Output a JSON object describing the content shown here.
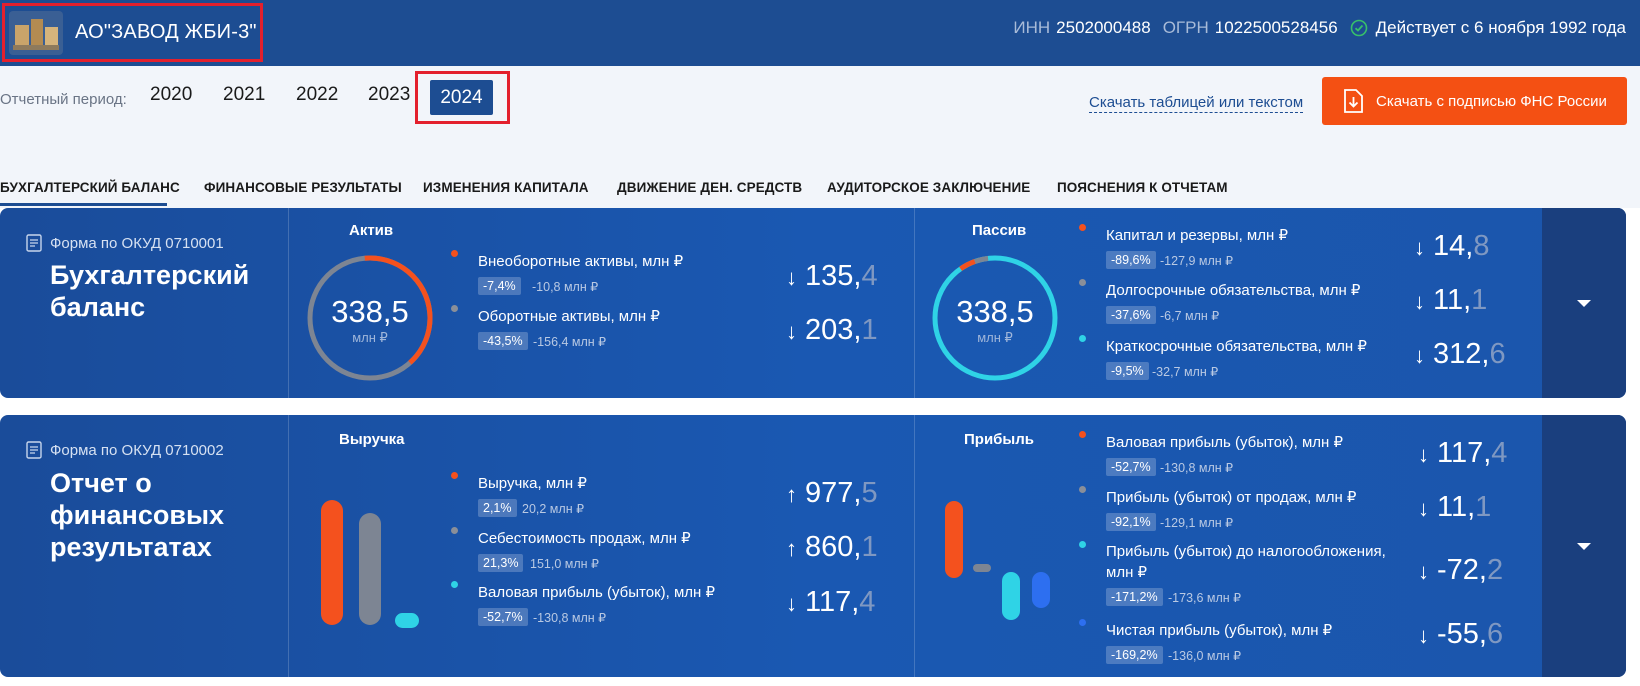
{
  "header": {
    "company_name": "АО\"ЗАВОД ЖБИ-3\"",
    "inn_label": "ИНН",
    "inn": "2502000488",
    "ogrn_label": "ОГРН",
    "ogrn": "1022500528456",
    "status": "Действует с 6 ноября 1992 года"
  },
  "period": {
    "label": "Отчетный период:",
    "years": [
      "2020",
      "2021",
      "2022",
      "2023"
    ],
    "active_year": "2024",
    "download_link": "Скачать таблицей или текстом",
    "download_button": "Скачать с подписью ФНС России"
  },
  "tabs": [
    "БУХГАЛТЕРСКИЙ БАЛАНС",
    "ФИНАНСОВЫЕ РЕЗУЛЬТАТЫ",
    "ИЗМЕНЕНИЯ КАПИТАЛА",
    "ДВИЖЕНИЕ ДЕН. СРЕДСТВ",
    "АУДИТОРСКОЕ ЗАКЛЮЧЕНИЕ",
    "ПОЯСНЕНИЯ К ОТЧЕТАМ"
  ],
  "colors": {
    "header_bg": "#1d4d92",
    "accent_orange": "#f45013",
    "highlight_red": "#e3202d",
    "dot_orange": "#f4511e",
    "dot_gray": "#8a8f99",
    "dot_cyan": "#2fd3e6",
    "dot_blue": "#2d6ff0"
  },
  "balance": {
    "form_code": "Форма по ОКУД 0710001",
    "title_line1": "Бухгалтерский",
    "title_line2": "баланс",
    "aktiv": {
      "title": "Актив",
      "total": "338,5",
      "unit": "млн ₽",
      "rows": [
        {
          "label": "Внеоборотные активы, млн ₽",
          "pct": "-7,4%",
          "delta": "-10,8 млн ₽",
          "int": "135,",
          "dec": "4",
          "dir": "down"
        },
        {
          "label": "Оборотные активы, млн ₽",
          "pct": "-43,5%",
          "delta": "-156,4 млн ₽",
          "int": "203,",
          "dec": "1",
          "dir": "down"
        }
      ]
    },
    "passiv": {
      "title": "Пассив",
      "total": "338,5",
      "unit": "млн ₽",
      "rows": [
        {
          "label": "Капитал и резервы, млн ₽",
          "pct": "-89,6%",
          "delta": "-127,9 млн ₽",
          "int": "14,",
          "dec": "8",
          "dir": "down"
        },
        {
          "label": "Долгосрочные обязательства, млн ₽",
          "pct": "-37,6%",
          "delta": "-6,7 млн ₽",
          "int": "11,",
          "dec": "1",
          "dir": "down"
        },
        {
          "label": "Краткосрочные обязательства, млн ₽",
          "pct": "-9,5%",
          "delta": "-32,7 млн ₽",
          "int": "312,",
          "dec": "6",
          "dir": "down"
        }
      ]
    }
  },
  "results": {
    "form_code": "Форма по ОКУД 0710002",
    "title_line1": "Отчет о",
    "title_line2": "финансовых",
    "title_line3": "результатах",
    "revenue": {
      "title": "Выручка",
      "rows": [
        {
          "label": "Выручка, млн ₽",
          "pct": "2,1%",
          "delta": "20,2 млн ₽",
          "int": "977,",
          "dec": "5",
          "dir": "up"
        },
        {
          "label": "Себестоимость продаж, млн ₽",
          "pct": "21,3%",
          "delta": "151,0 млн ₽",
          "int": "860,",
          "dec": "1",
          "dir": "up"
        },
        {
          "label": "Валовая прибыль (убыток), млн ₽",
          "pct": "-52,7%",
          "delta": "-130,8 млн ₽",
          "int": "117,",
          "dec": "4",
          "dir": "down"
        }
      ]
    },
    "profit": {
      "title": "Прибыль",
      "rows": [
        {
          "label": "Валовая прибыль (убыток), млн ₽",
          "pct": "-52,7%",
          "delta": "-130,8 млн ₽",
          "int": "117,",
          "dec": "4",
          "dir": "down"
        },
        {
          "label": "Прибыль (убыток) от продаж, млн ₽",
          "pct": "-92,1%",
          "delta": "-129,1 млн ₽",
          "int": "11,",
          "dec": "1",
          "dir": "down"
        },
        {
          "label": "Прибыль (убыток) до налогообложения,",
          "label2": "млн ₽",
          "pct": "-171,2%",
          "delta": "-173,6 млн ₽",
          "int": "-72,",
          "dec": "2",
          "dir": "down"
        },
        {
          "label": "Чистая прибыль (убыток), млн ₽",
          "pct": "-169,2%",
          "delta": "-136,0 млн ₽",
          "int": "-55,",
          "dec": "6",
          "dir": "down"
        }
      ]
    }
  }
}
